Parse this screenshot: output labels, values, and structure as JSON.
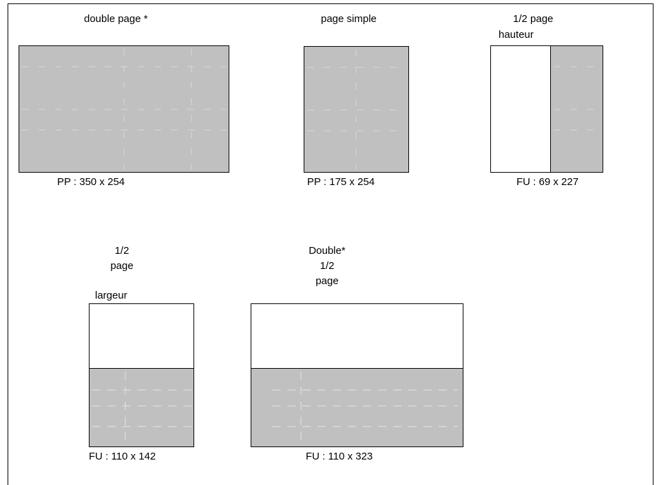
{
  "formats": {
    "double_page": {
      "title": "double page *",
      "dims": "PP : 350 x 254"
    },
    "page_simple": {
      "title": "page simple",
      "dims": "PP : 175 x 254"
    },
    "half_height": {
      "title_line1": "1/2 page",
      "title_line2": "hauteur",
      "dims": "FU : 69 x 227"
    },
    "half_width": {
      "title_line1": "1/2",
      "title_line2": "page",
      "title_line3": "largeur",
      "dims": "FU : 110 x 142"
    },
    "double_half": {
      "title_line1": "Double*",
      "title_line2": "1/2",
      "title_line3": "page",
      "dims": "FU : 110 x 323"
    }
  },
  "colors": {
    "fill": "#c0c0c0",
    "border": "#000000",
    "guide": "#dcdcdc"
  }
}
